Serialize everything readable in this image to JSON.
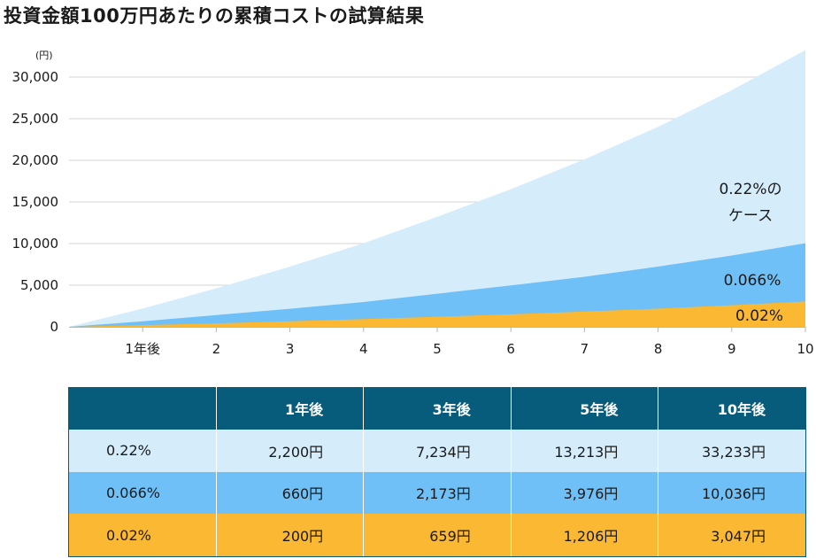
{
  "title": "投資金額100万円あたりの累積コストの試算結果",
  "chart_data": {
    "type": "area",
    "unit_label": "(円)",
    "x": [
      0,
      1,
      2,
      3,
      4,
      5,
      6,
      7,
      8,
      9,
      10
    ],
    "x_tick_labels": [
      "1年後",
      "2",
      "3",
      "4",
      "5",
      "6",
      "7",
      "8",
      "9",
      "10"
    ],
    "y_ticks": [
      "0",
      "5,000",
      "10,000",
      "15,000",
      "20,000",
      "25,000",
      "30,000"
    ],
    "ylim": [
      0,
      30000
    ],
    "grid": true,
    "series": [
      {
        "name": "0.22%のケース",
        "label_lines": [
          "0.22%の",
          "ケース"
        ],
        "color": "#d5ecfb",
        "values": [
          0,
          2200,
          4624,
          7234,
          10035,
          13213,
          16530,
          20124,
          24018,
          28417,
          33233
        ]
      },
      {
        "name": "0.066%",
        "label_lines": [
          "0.066%"
        ],
        "color": "#6fc0f6",
        "values": [
          0,
          660,
          1413,
          2173,
          2980,
          3976,
          4968,
          6010,
          7240,
          8560,
          10036
        ]
      },
      {
        "name": "0.02%",
        "label_lines": [
          "0.02%"
        ],
        "color": "#fbb933",
        "values": [
          0,
          200,
          415,
          659,
          925,
          1206,
          1505,
          1830,
          2180,
          2590,
          3047
        ]
      }
    ]
  },
  "table": {
    "headers": [
      "",
      "1年後",
      "3年後",
      "5年後",
      "10年後"
    ],
    "rows": [
      {
        "label": "0.22%",
        "cells": [
          "2,200円",
          "7,234円",
          "13,213円",
          "33,233円"
        ]
      },
      {
        "label": "0.066%",
        "cells": [
          "660円",
          "2,173円",
          "3,976円",
          "10,036円"
        ]
      },
      {
        "label": "0.02%",
        "cells": [
          "200円",
          "659円",
          "1,206円",
          "3,047円"
        ]
      }
    ]
  }
}
